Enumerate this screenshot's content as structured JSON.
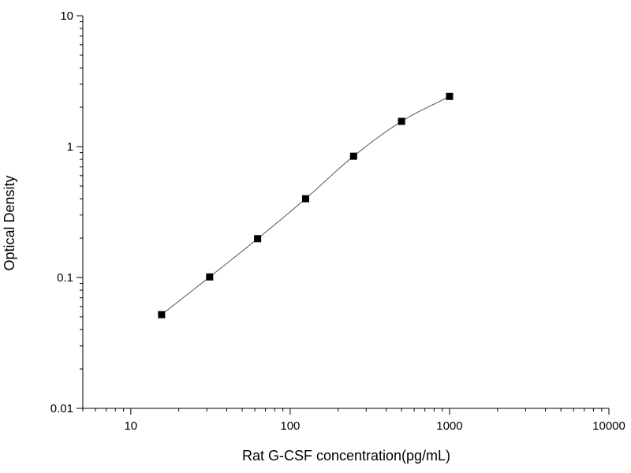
{
  "chart_data": {
    "type": "scatter",
    "title": "",
    "xlabel": "Rat G-CSF concentration(pg/mL)",
    "ylabel": "Optical Density",
    "x_scale": "log",
    "y_scale": "log",
    "xlim": [
      5,
      10000
    ],
    "ylim": [
      0.01,
      10
    ],
    "x_ticks": [
      10,
      100,
      1000,
      10000
    ],
    "y_ticks": [
      0.01,
      0.1,
      1,
      10
    ],
    "x_tick_labels": [
      "10",
      "100",
      "1000",
      "10000"
    ],
    "y_tick_labels": [
      "0.01",
      "0.1",
      "1",
      "10"
    ],
    "grid": false,
    "legend": "none",
    "marker": "square",
    "marker_color": "#000000",
    "line_color": "#555555",
    "series": [
      {
        "x": [
          15.6,
          31.25,
          62.5,
          125,
          250,
          500,
          1000
        ],
        "y": [
          0.052,
          0.101,
          0.198,
          0.4,
          0.845,
          1.56,
          2.42
        ]
      }
    ]
  }
}
